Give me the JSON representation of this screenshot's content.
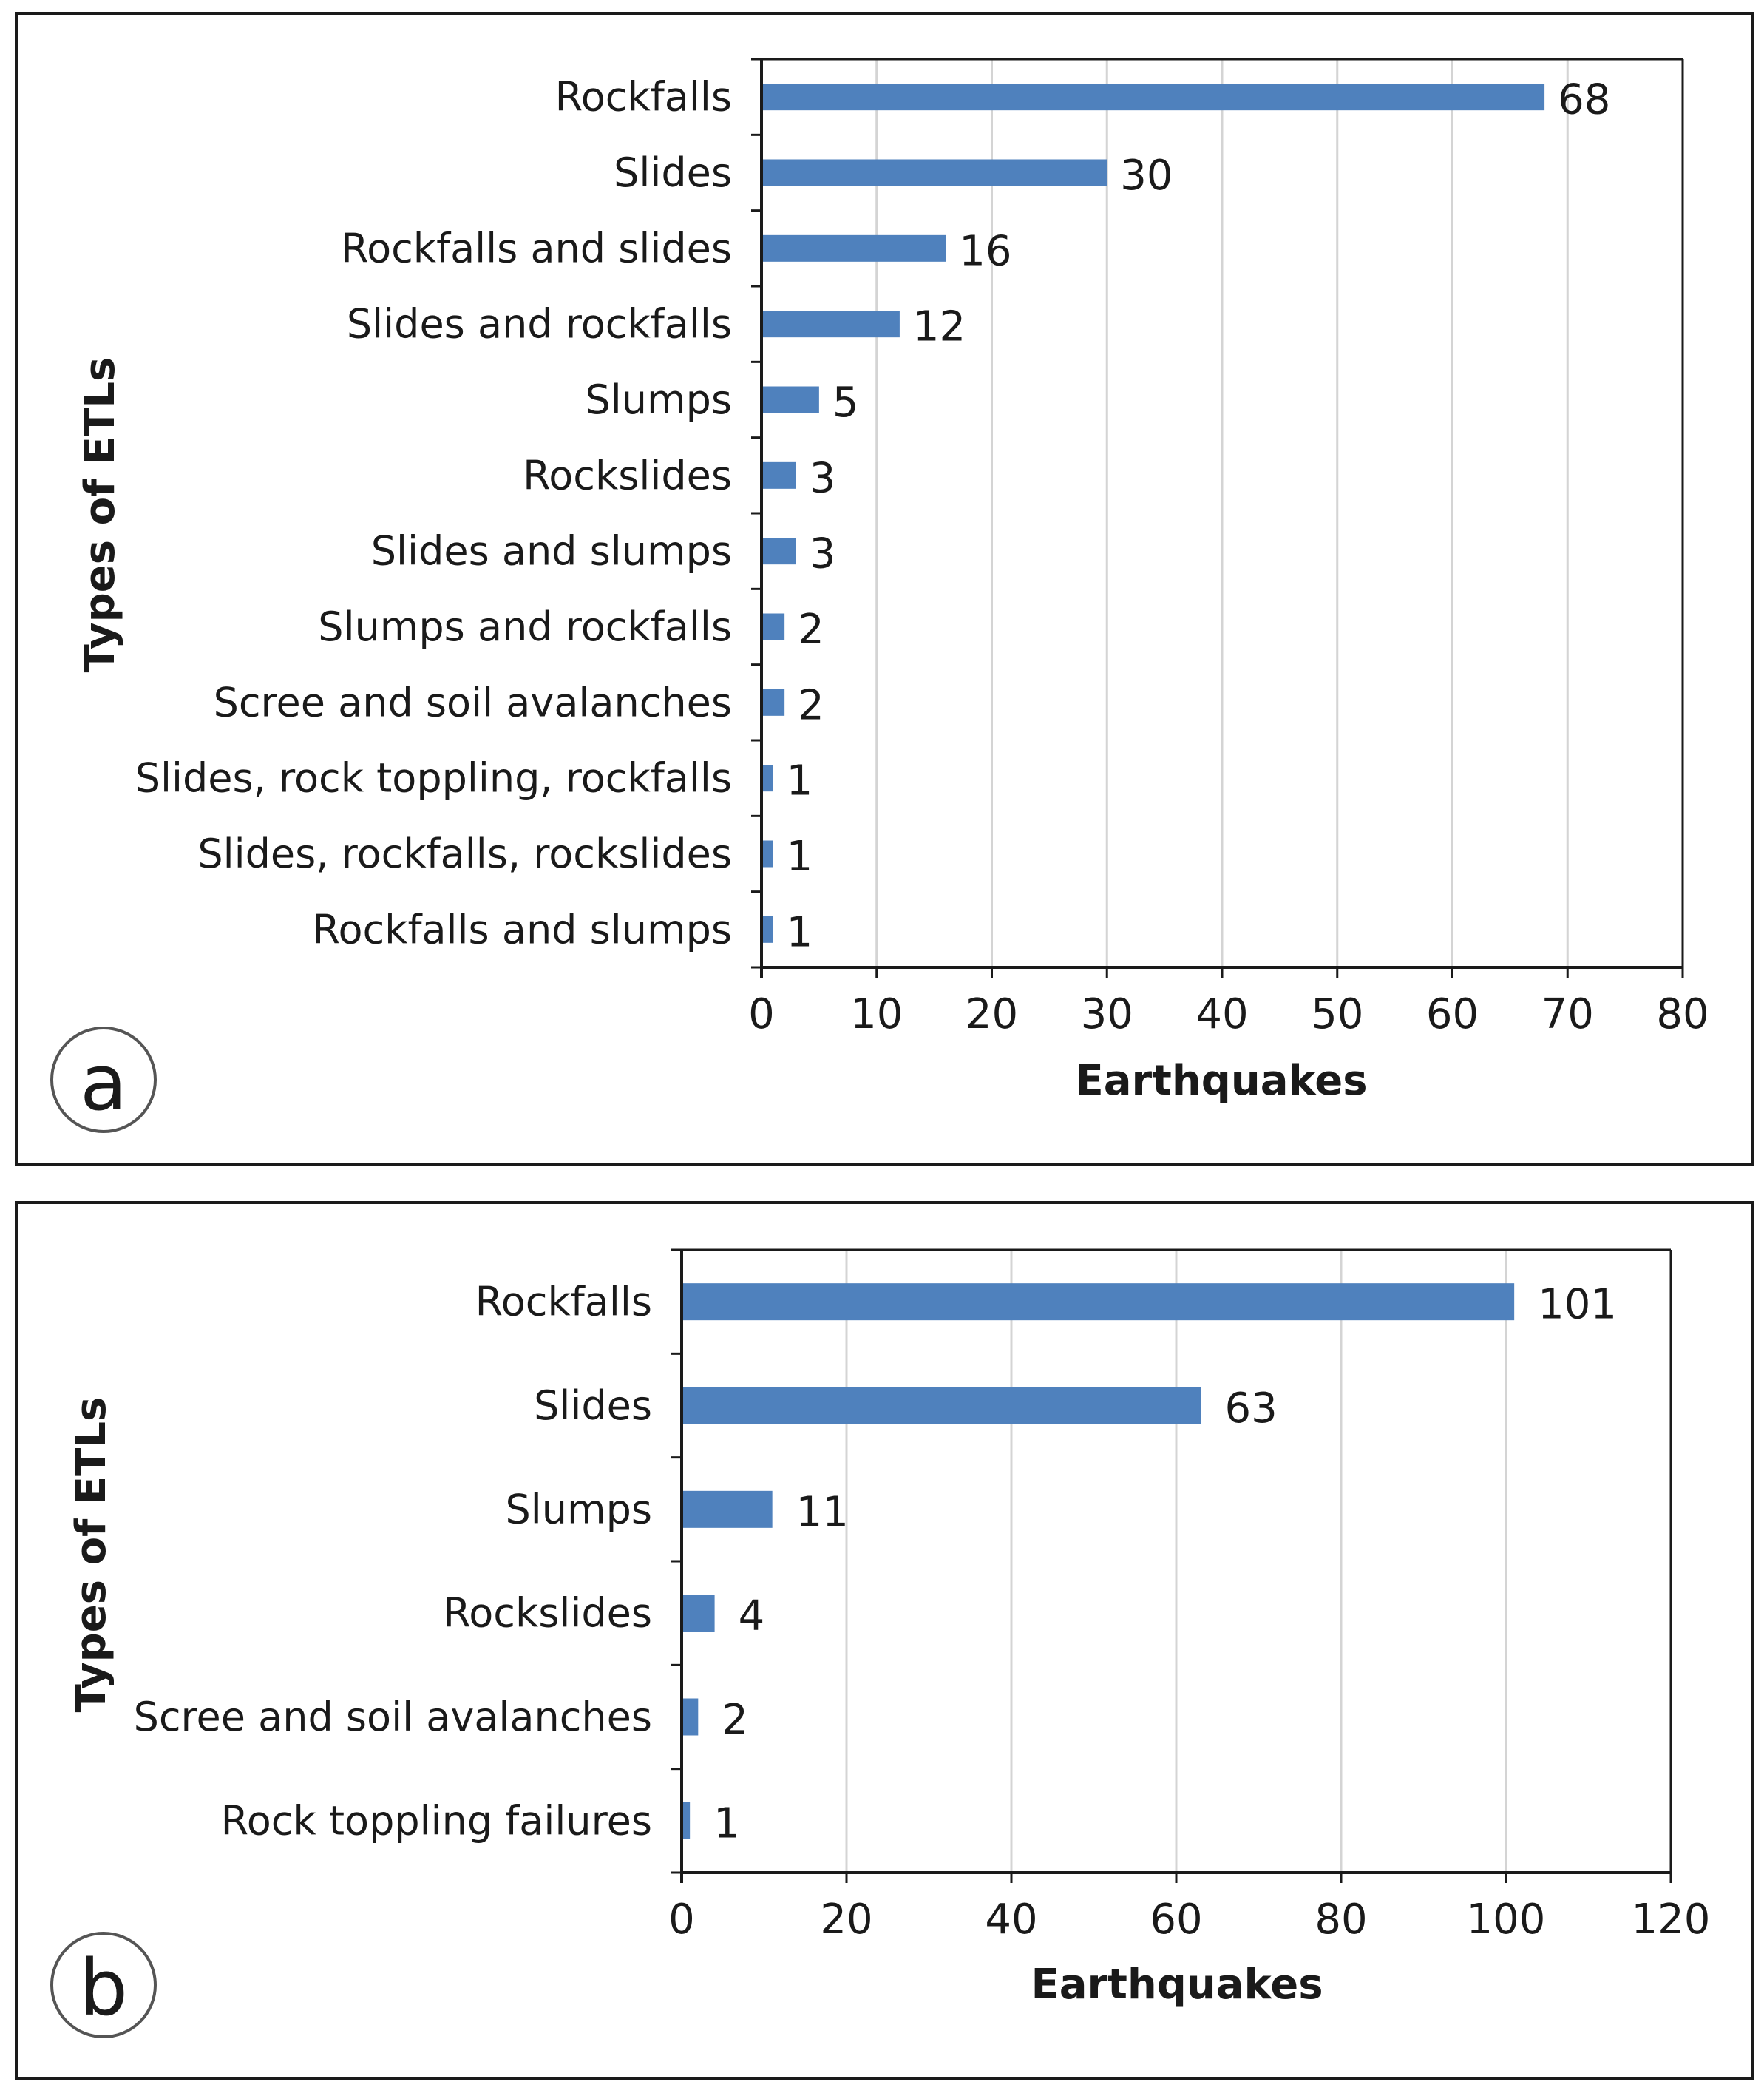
{
  "chart_data": [
    {
      "id": "a",
      "type": "bar",
      "orientation": "horizontal",
      "panel_label": "a",
      "title": "",
      "xlabel": "Earthquakes",
      "ylabel": "Types of ETLs",
      "xlim": [
        0,
        80
      ],
      "x_ticks": [
        0,
        10,
        20,
        30,
        40,
        50,
        60,
        70,
        80
      ],
      "grid": "vertical",
      "bar_color": "#4f81bd",
      "categories": [
        "Rockfalls",
        "Slides",
        "Rockfalls and slides",
        "Slides and rockfalls",
        "Slumps",
        "Rockslides",
        "Slides and slumps",
        "Slumps and rockfalls",
        "Scree and soil avalanches",
        "Slides, rock toppling, rockfalls",
        "Slides, rockfalls, rockslides",
        "Rockfalls and slumps"
      ],
      "values": [
        68,
        30,
        16,
        12,
        5,
        3,
        3,
        2,
        2,
        1,
        1,
        1
      ]
    },
    {
      "id": "b",
      "type": "bar",
      "orientation": "horizontal",
      "panel_label": "b",
      "title": "",
      "xlabel": "Earthquakes",
      "ylabel": "Types of ETLs",
      "xlim": [
        0,
        120
      ],
      "x_ticks": [
        0,
        20,
        40,
        60,
        80,
        100,
        120
      ],
      "grid": "vertical",
      "bar_color": "#4f81bd",
      "categories": [
        "Rockfalls",
        "Slides",
        "Slumps",
        "Rockslides",
        "Scree and soil avalanches",
        "Rock toppling failures"
      ],
      "values": [
        101,
        63,
        11,
        4,
        2,
        1
      ]
    }
  ]
}
